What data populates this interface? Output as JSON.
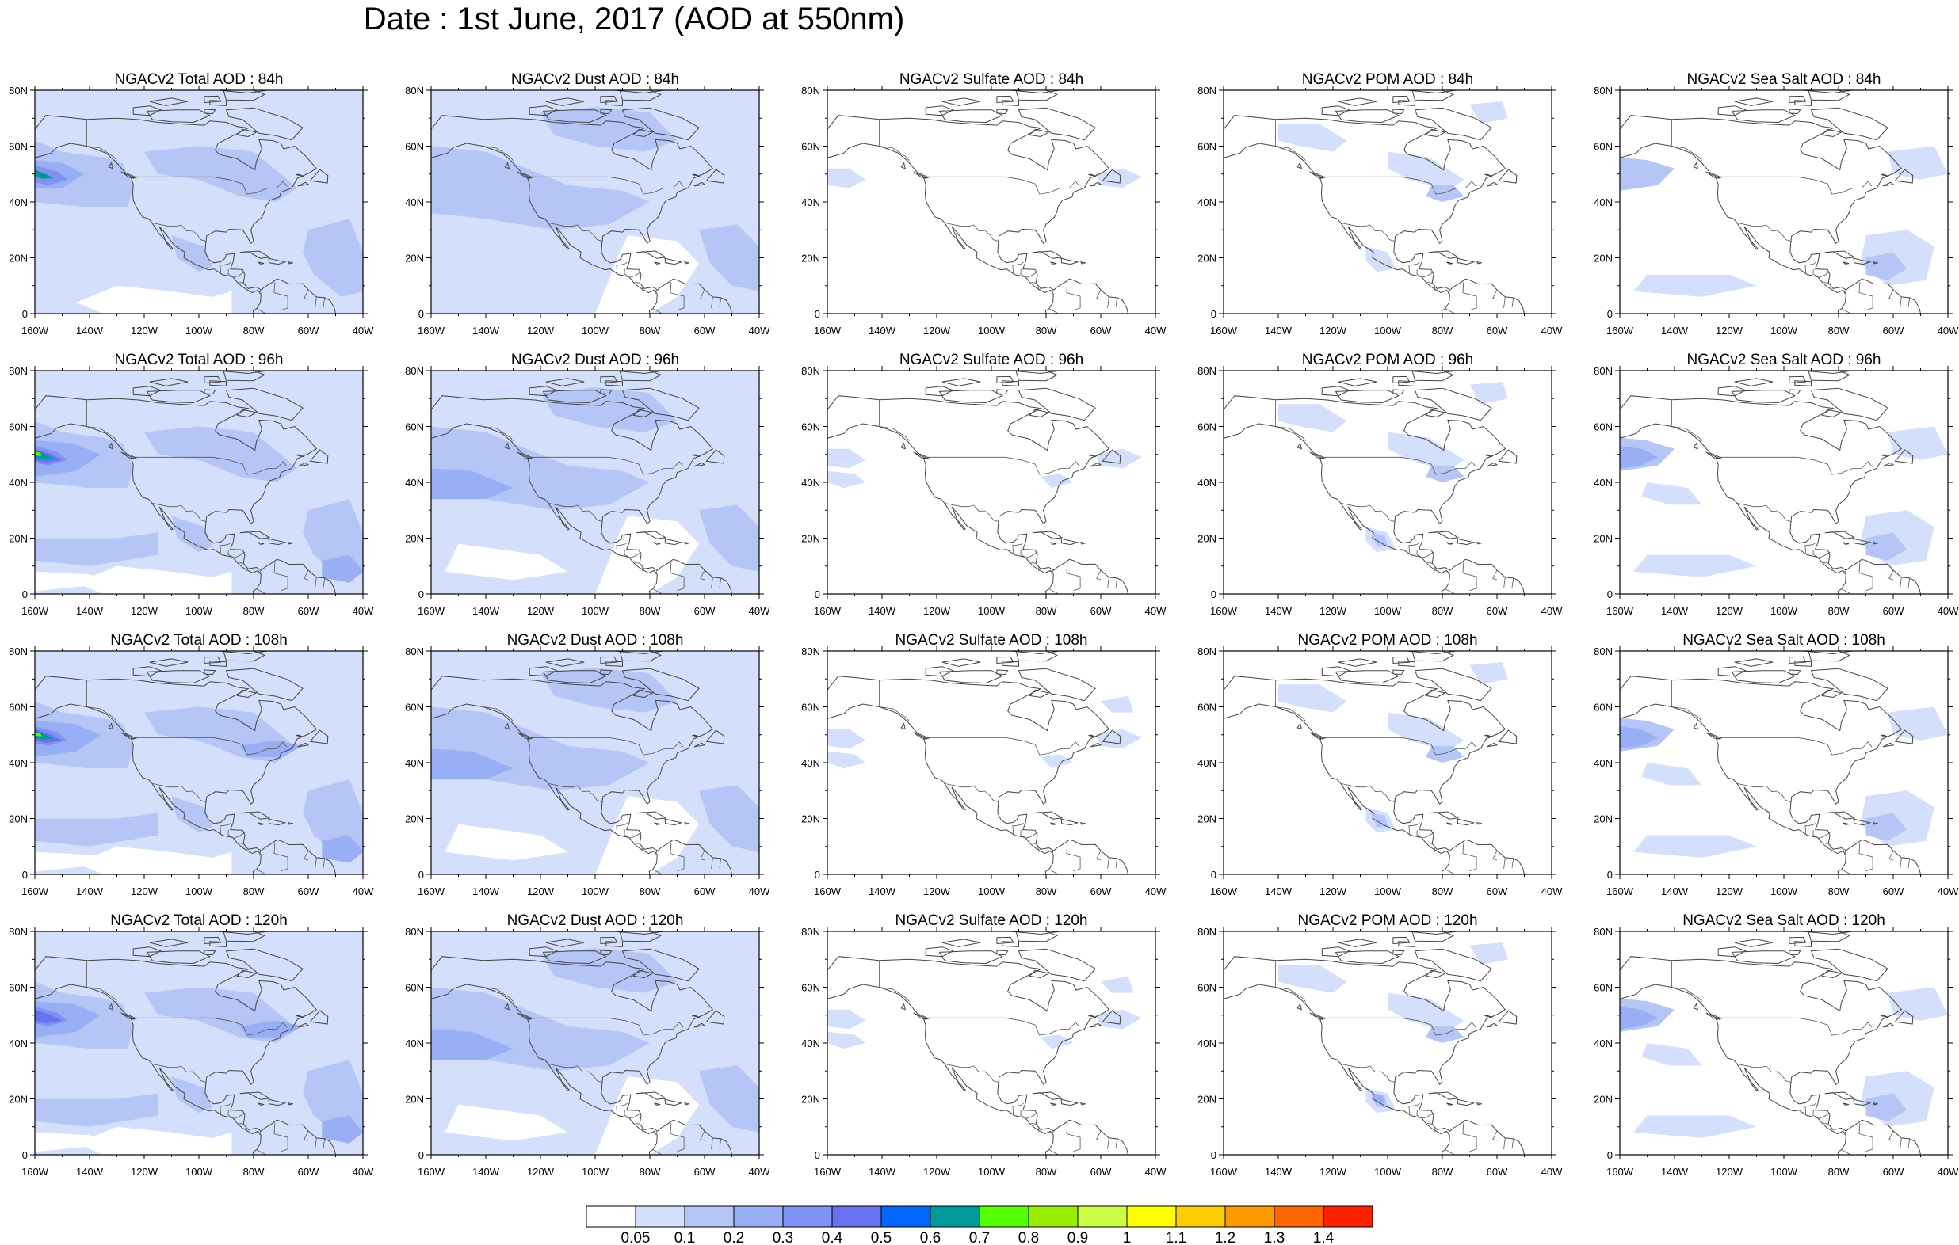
{
  "title": "Date : 1st June, 2017 (AOD at 550nm)",
  "axes": {
    "x_ticks": [
      "160W",
      "140W",
      "120W",
      "100W",
      "80W",
      "60W",
      "40W"
    ],
    "y_ticks": [
      "80N",
      "60N",
      "40N",
      "20N",
      "0"
    ]
  },
  "panels": [
    {
      "title": "NGACv2 Total AOD : 84h",
      "field": "total",
      "hour": 84
    },
    {
      "title": "NGACv2 Dust AOD : 84h",
      "field": "dust",
      "hour": 84
    },
    {
      "title": "NGACv2 Sulfate AOD : 84h",
      "field": "sulfate",
      "hour": 84
    },
    {
      "title": "NGACv2 POM AOD : 84h",
      "field": "pom",
      "hour": 84
    },
    {
      "title": "NGACv2 Sea Salt AOD : 84h",
      "field": "seasalt",
      "hour": 84
    },
    {
      "title": "NGACv2 Total AOD : 96h",
      "field": "total",
      "hour": 96
    },
    {
      "title": "NGACv2 Dust AOD : 96h",
      "field": "dust",
      "hour": 96
    },
    {
      "title": "NGACv2 Sulfate AOD : 96h",
      "field": "sulfate",
      "hour": 96
    },
    {
      "title": "NGACv2 POM AOD : 96h",
      "field": "pom",
      "hour": 96
    },
    {
      "title": "NGACv2 Sea Salt AOD : 96h",
      "field": "seasalt",
      "hour": 96
    },
    {
      "title": "NGACv2 Total AOD : 108h",
      "field": "total",
      "hour": 108
    },
    {
      "title": "NGACv2 Dust AOD : 108h",
      "field": "dust",
      "hour": 108
    },
    {
      "title": "NGACv2 Sulfate AOD : 108h",
      "field": "sulfate",
      "hour": 108
    },
    {
      "title": "NGACv2 POM AOD : 108h",
      "field": "pom",
      "hour": 108
    },
    {
      "title": "NGACv2 Sea Salt AOD : 108h",
      "field": "seasalt",
      "hour": 108
    },
    {
      "title": "NGACv2 Total AOD : 120h",
      "field": "total",
      "hour": 120
    },
    {
      "title": "NGACv2 Dust AOD : 120h",
      "field": "dust",
      "hour": 120
    },
    {
      "title": "NGACv2 Sulfate AOD : 120h",
      "field": "sulfate",
      "hour": 120
    },
    {
      "title": "NGACv2 POM AOD : 120h",
      "field": "pom",
      "hour": 120
    },
    {
      "title": "NGACv2 Sea Salt  AOD : 120h",
      "field": "seasalt",
      "hour": 120
    }
  ],
  "colorbar": {
    "labels": [
      "0.05",
      "0.1",
      "0.2",
      "0.3",
      "0.4",
      "0.5",
      "0.6",
      "0.7",
      "0.8",
      "0.9",
      "1",
      "1.1",
      "1.2",
      "1.3",
      "1.4"
    ],
    "colors": [
      "#ffffff",
      "#d4dffb",
      "#b5c5f6",
      "#98aef5",
      "#8093f5",
      "#6672ee",
      "#0066ff",
      "#009a9a",
      "#55ff00",
      "#99ee00",
      "#ccff44",
      "#ffff00",
      "#ffcc00",
      "#ff9900",
      "#ff6600",
      "#ff2200"
    ]
  },
  "map_colors": {
    "coast": "#444444",
    "border": "#555555",
    "frame": "#000000"
  }
}
